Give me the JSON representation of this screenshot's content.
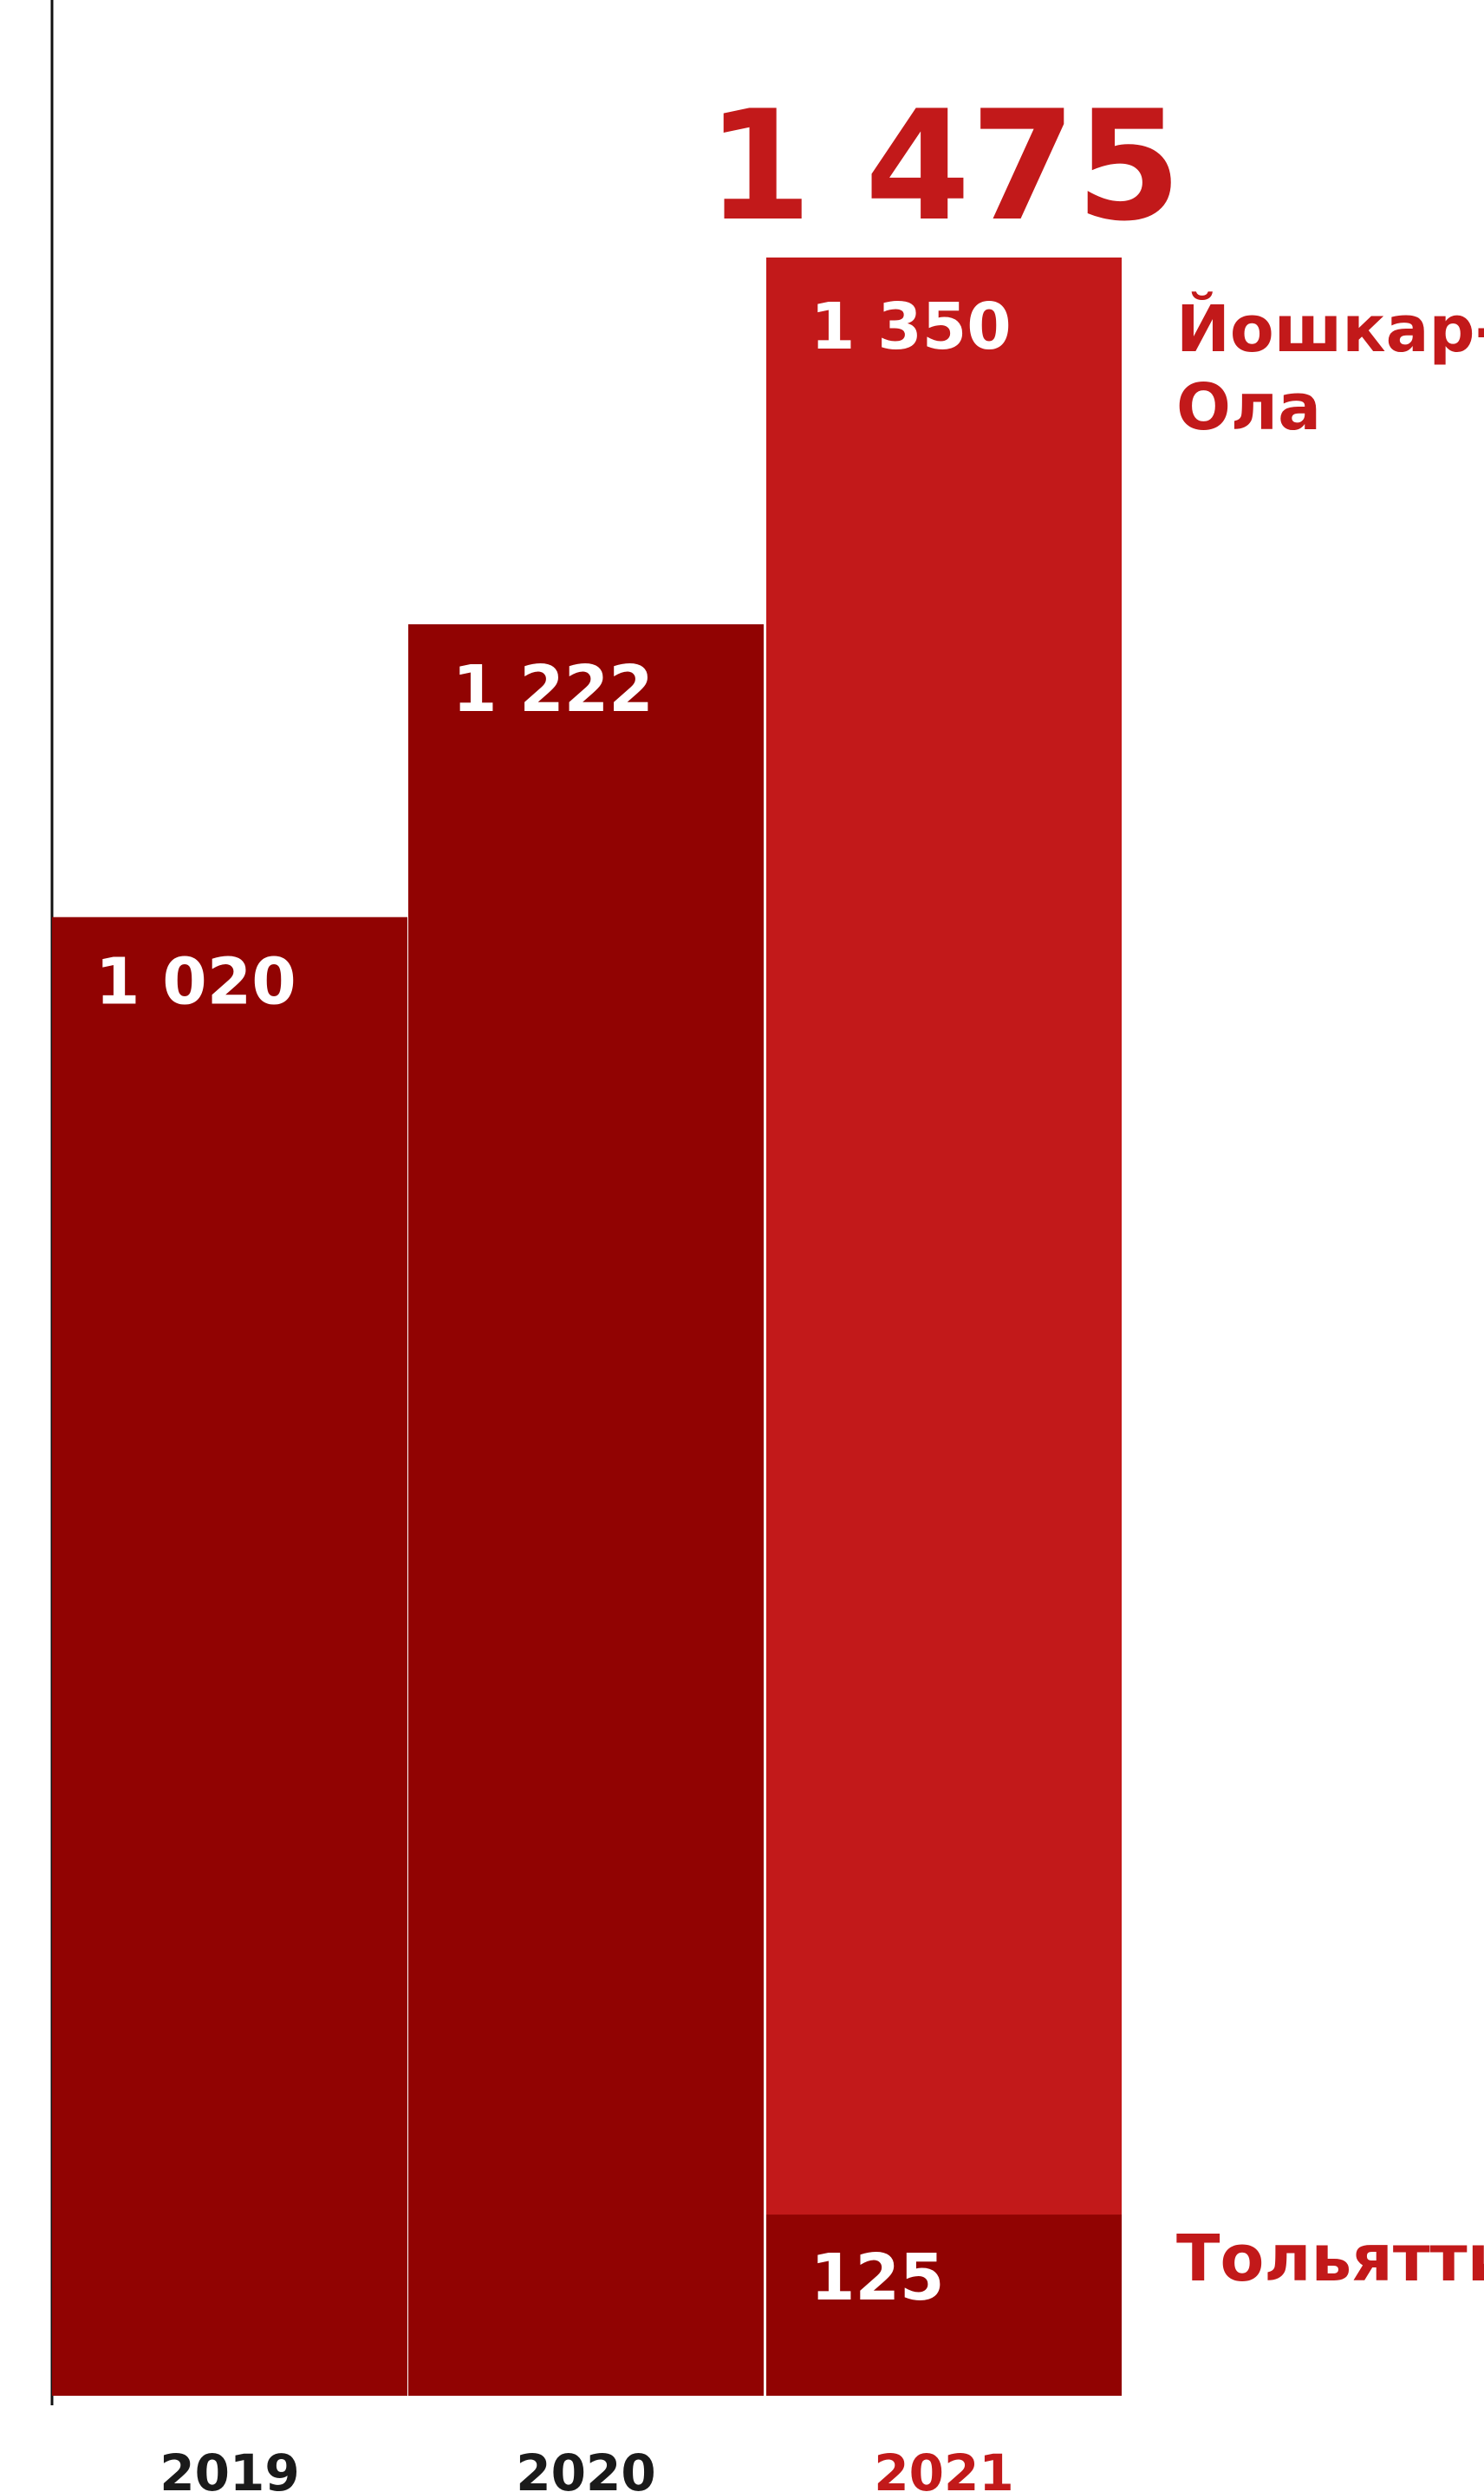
{
  "chart_data": {
    "type": "bar",
    "stacked": true,
    "title": "",
    "xlabel": "",
    "ylabel": "",
    "categories": [
      "2019",
      "2020",
      "2021"
    ],
    "series": [
      {
        "name": "",
        "values": [
          1020,
          1222,
          125
        ]
      },
      {
        "name": "",
        "values": [
          0,
          0,
          1350
        ]
      }
    ],
    "totals": [
      1020,
      1222,
      1475
    ],
    "value_labels": [
      "1 020",
      "1 222",
      "125",
      "1 350"
    ],
    "total_label_2021": "1 475",
    "segment_names": {
      "bottom_2021": "Тольятти",
      "top_2021_line1": "Йошкар-",
      "top_2021_line2": "Ола"
    },
    "ylim": [
      0,
      1475
    ],
    "grid": false,
    "colors": {
      "dark_red": "#910302",
      "bright_red": "#C2191A",
      "text_white": "#FFFFFF",
      "axis": "#111111",
      "year_dark": "#1A1A1A"
    }
  }
}
